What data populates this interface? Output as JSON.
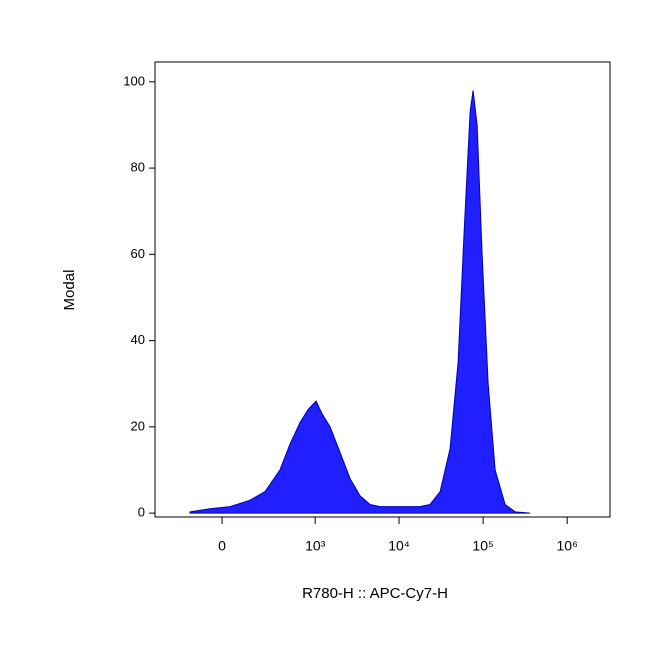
{
  "chart_data": {
    "type": "area",
    "xlabel": "R780-H :: APC-Cy7-H",
    "ylabel": "Modal",
    "xscale": "arcsinh",
    "x": [
      -156,
      -53,
      35,
      133,
      231,
      367,
      493,
      656,
      821,
      1025,
      1211,
      1510,
      1988,
      2614,
      3438,
      4522,
      5940,
      10300,
      17800,
      23400,
      30800,
      40500,
      50400,
      59400,
      70000,
      76000,
      84800,
      97300,
      114800,
      139000,
      182800,
      240000,
      362000
    ],
    "values": [
      0.3,
      1,
      1.5,
      3,
      5,
      10,
      16,
      21,
      24,
      26,
      23,
      20,
      14,
      8,
      4,
      2,
      1.5,
      1.5,
      1.5,
      2,
      5,
      15,
      35,
      65,
      93,
      98,
      90,
      60,
      30,
      10,
      2,
      0.3,
      0
    ],
    "color": "#1f1fff",
    "xlim": [
      -480,
      3230000
    ],
    "xticks": [
      0,
      {
        "value": 1000,
        "label": "10³"
      },
      {
        "value": 10000,
        "label": "10⁴"
      },
      {
        "value": 100000,
        "label": "10⁵"
      },
      {
        "value": 1000000,
        "label": "10⁶"
      }
    ],
    "ylim": [
      -0.9,
      104.6
    ],
    "yticks": [
      0,
      20,
      40,
      60,
      80,
      100
    ]
  }
}
